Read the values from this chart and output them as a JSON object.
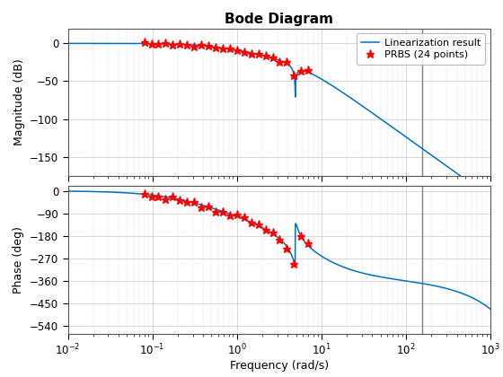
{
  "title": "Bode Diagram",
  "xlabel": "Frequency (rad/s)",
  "ylabel_mag": "Magnitude (dB)",
  "ylabel_phase": "Phase (deg)",
  "line_color": "#0072BD",
  "marker_color": "#FF0000",
  "vline_color": "#808080",
  "vline_x": 157.0,
  "legend_labels": [
    "Linearization result",
    "PRBS (24 points)"
  ],
  "mag_ylim": [
    -175,
    20
  ],
  "mag_yticks": [
    0,
    -50,
    -100,
    -150
  ],
  "phase_ylim": [
    -570,
    20
  ],
  "phase_yticks": [
    0,
    -90,
    -180,
    -270,
    -360,
    -450,
    -540
  ],
  "xlim": [
    0.01,
    1000
  ],
  "background_color": "#ffffff",
  "title_fontsize": 11,
  "axis_fontsize": 9,
  "tick_fontsize": 8.5
}
